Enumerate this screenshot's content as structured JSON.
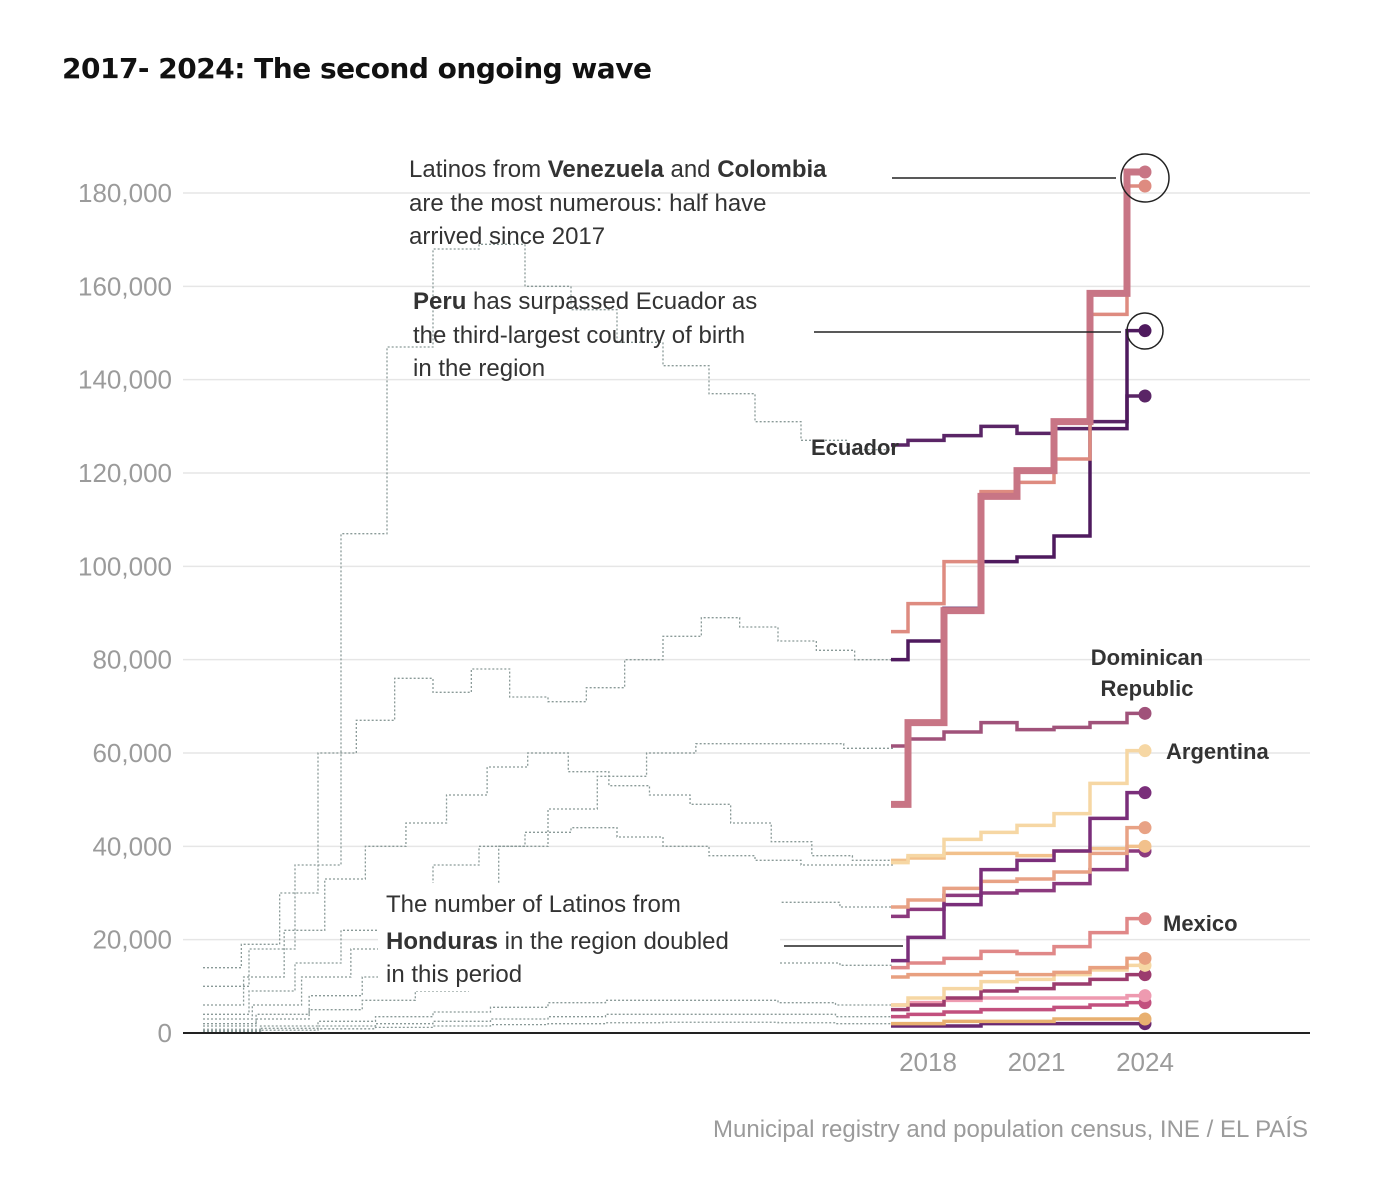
{
  "title": "2017- 2024: The second ongoing wave",
  "source": "Municipal registry and population census, INE / EL PAÍS",
  "annotations": {
    "venezuela_colombia": {
      "line1_pre": "Latinos from ",
      "line1_b1": "Venezuela",
      "line1_mid": " and ",
      "line1_b2": "Colombia",
      "line2": "are the most numerous: half have",
      "line3": "arrived since 2017"
    },
    "peru": {
      "line1_b": "Peru",
      "line1_post": " has surpassed Ecuador as",
      "line2": "the third-largest country of birth",
      "line3": "in the region"
    },
    "honduras": {
      "line1": "The number of Latinos from",
      "line2_b": "Honduras",
      "line2_post": " in the region doubled",
      "line3": "in this period"
    }
  },
  "country_labels": {
    "ecuador": "Ecuador",
    "dominican_1": "Dominican",
    "dominican_2": "Republic",
    "argentina": "Argentina",
    "mexico": "Mexico"
  },
  "chart_data": {
    "type": "line",
    "step": true,
    "x": [
      2017,
      2018,
      2019,
      2020,
      2021,
      2022,
      2023,
      2024
    ],
    "x_ticks": [
      "2018",
      "2021",
      "2024"
    ],
    "x_tick_values": [
      2018,
      2021,
      2024
    ],
    "y_ticks": [
      "0",
      "20,000",
      "40,000",
      "60,000",
      "80,000",
      "100,000",
      "120,000",
      "140,000",
      "160,000",
      "180,000"
    ],
    "y_tick_values": [
      0,
      20000,
      40000,
      60000,
      80000,
      100000,
      120000,
      140000,
      160000,
      180000
    ],
    "ylim": [
      0,
      180000
    ],
    "grid": true,
    "highlighted_series": [
      {
        "name": "Venezuela",
        "color": "#c87585",
        "width": 7,
        "values": [
          49000,
          66500,
          90500,
          115000,
          120500,
          131000,
          158500,
          184500
        ]
      },
      {
        "name": "Colombia",
        "color": "#de8b80",
        "width": 3.5,
        "values": [
          86000,
          92000,
          101000,
          116000,
          118000,
          123000,
          154000,
          181500
        ]
      },
      {
        "name": "Peru",
        "color": "#4f1a5e",
        "width": 3.5,
        "values": [
          80000,
          84000,
          91000,
          101000,
          102000,
          106500,
          129500,
          150500
        ]
      },
      {
        "name": "Ecuador",
        "color": "#5a2566",
        "width": 3.5,
        "values": [
          126000,
          127000,
          128000,
          130000,
          128500,
          129500,
          131000,
          136500
        ]
      },
      {
        "name": "Dominican Republic",
        "color": "#a0527a",
        "width": 3.5,
        "values": [
          61500,
          63000,
          64500,
          66500,
          65000,
          65500,
          66500,
          68500
        ]
      },
      {
        "name": "Argentina",
        "color": "#f6d7a4",
        "width": 3.5,
        "values": [
          36500,
          38000,
          41500,
          43000,
          44500,
          47000,
          53500,
          60500
        ]
      },
      {
        "name": "Honduras",
        "color": "#7a2e7a",
        "width": 3.5,
        "values": [
          15500,
          20500,
          27500,
          35000,
          37000,
          39000,
          46000,
          51500
        ]
      },
      {
        "name": "",
        "color": "#e8a285",
        "width": 3.5,
        "values": [
          27000,
          28500,
          31000,
          32500,
          33000,
          34500,
          38500,
          44000
        ]
      },
      {
        "name": "",
        "color": "#f2c18c",
        "width": 3.5,
        "values": [
          37000,
          37500,
          38500,
          38500,
          38000,
          39000,
          39500,
          40000
        ]
      },
      {
        "name": "",
        "color": "#8c3a7e",
        "width": 3.5,
        "values": [
          25000,
          26500,
          29500,
          30000,
          30500,
          32000,
          35000,
          39000
        ]
      },
      {
        "name": "Mexico",
        "color": "#e08888",
        "width": 3.5,
        "values": [
          14000,
          15000,
          16000,
          17500,
          17000,
          18500,
          21500,
          24500
        ]
      },
      {
        "name": "",
        "color": "#e8a080",
        "width": 3.5,
        "values": [
          12000,
          12500,
          12500,
          13000,
          12500,
          13000,
          14000,
          16000
        ]
      },
      {
        "name": "",
        "color": "#f6d7a4",
        "width": 3.5,
        "values": [
          6000,
          7500,
          9500,
          11000,
          11500,
          12500,
          13500,
          14500
        ]
      },
      {
        "name": "",
        "color": "#9c3c6e",
        "width": 3.5,
        "values": [
          5000,
          6000,
          7500,
          9000,
          9500,
          10500,
          11500,
          12500
        ]
      },
      {
        "name": "",
        "color": "#ee9ab0",
        "width": 3.5,
        "values": [
          6000,
          6500,
          7000,
          7500,
          7500,
          7500,
          7500,
          8000
        ]
      },
      {
        "name": "",
        "color": "#c2507e",
        "width": 3.5,
        "values": [
          3500,
          4000,
          4500,
          5000,
          5000,
          5500,
          6000,
          6500
        ]
      },
      {
        "name": "",
        "color": "#e8b070",
        "width": 3.5,
        "values": [
          2000,
          2000,
          2500,
          2500,
          2500,
          3000,
          3000,
          3000
        ]
      },
      {
        "name": "",
        "color": "#6a2870",
        "width": 3.5,
        "values": [
          1500,
          1500,
          1500,
          2000,
          2000,
          2000,
          2000,
          2000
        ]
      }
    ],
    "background_series_note": "dotted grey steps for earlier years",
    "background_series": [
      [
        10000,
        18000,
        36000,
        107000,
        147000,
        168000,
        169000,
        160000,
        155000,
        148000,
        143000,
        137000,
        131000,
        127000,
        125000
      ],
      [
        14000,
        19000,
        30000,
        60000,
        67000,
        76000,
        73000,
        78000,
        72000,
        71000,
        74000,
        80000,
        85000,
        89000,
        87000,
        84000,
        82000,
        80000
      ],
      [
        6000,
        12000,
        22000,
        33000,
        40000,
        45000,
        51000,
        57000,
        60000,
        56000,
        53000,
        51000,
        49000,
        45000,
        41000,
        38000,
        37000
      ],
      [
        4000,
        9000,
        15000,
        22000,
        30000,
        36000,
        40000,
        43000,
        44000,
        42000,
        40000,
        38000,
        37000,
        36000,
        36000
      ],
      [
        3000,
        6000,
        12000,
        18000,
        25000,
        32000,
        40000,
        48000,
        55000,
        60000,
        62000,
        62000,
        62000,
        61000
      ],
      [
        2000,
        4000,
        8000,
        12000,
        16000,
        20000,
        23000,
        25000,
        27000,
        28000,
        28000,
        28000,
        27000
      ],
      [
        1500,
        3000,
        5000,
        7000,
        9000,
        11000,
        12500,
        14000,
        15000,
        15000,
        15000,
        15000,
        14500
      ],
      [
        800,
        1500,
        2500,
        3500,
        4500,
        5500,
        6500,
        7000,
        7000,
        7000,
        6500,
        6000
      ],
      [
        500,
        1000,
        1500,
        2000,
        2500,
        3000,
        3500,
        4000,
        4000,
        4000,
        4000,
        3500
      ],
      [
        300,
        600,
        900,
        1200,
        1500,
        1800,
        2000,
        2200,
        2300,
        2300,
        2200,
        2000
      ]
    ]
  }
}
